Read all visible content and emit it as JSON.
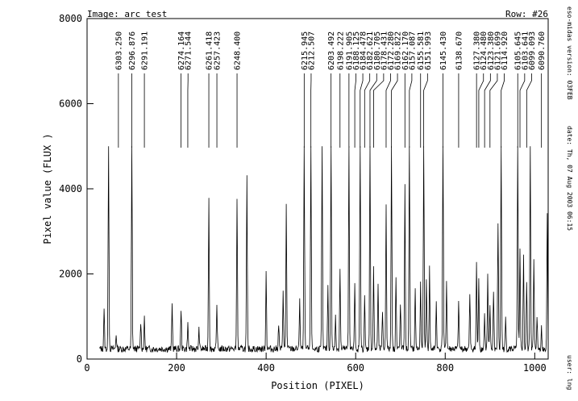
{
  "header": {
    "image_label": "Image: arc_test",
    "row_label": "Row: #26"
  },
  "side_text": {
    "version": "eso-midas version: 03FEB",
    "date": "date: Th, 07 Aug 2003 06:15",
    "user": "user: lng"
  },
  "chart_data": {
    "type": "line",
    "title": "",
    "xlabel": "Position (PIXEL)",
    "ylabel": "Pixel value (FLUX )",
    "xlim": [
      0,
      1030
    ],
    "ylim": [
      0,
      8000
    ],
    "x_ticks": [
      0,
      200,
      400,
      600,
      800,
      1000
    ],
    "y_ticks": [
      0,
      2000,
      4000,
      6000,
      8000
    ],
    "grid": false,
    "series": [
      {
        "baseline": 240,
        "x_range": [
          28,
          1030
        ],
        "peaks": [
          {
            "x": 38,
            "y": 900
          },
          {
            "x": 48,
            "y": 5000
          },
          {
            "x": 65,
            "y": 350
          },
          {
            "x": 100,
            "y": 5000
          },
          {
            "x": 120,
            "y": 650
          },
          {
            "x": 128,
            "y": 700
          },
          {
            "x": 190,
            "y": 1050
          },
          {
            "x": 210,
            "y": 950
          },
          {
            "x": 225,
            "y": 600
          },
          {
            "x": 250,
            "y": 450
          },
          {
            "x": 272,
            "y": 3600
          },
          {
            "x": 290,
            "y": 1000
          },
          {
            "x": 335,
            "y": 3600
          },
          {
            "x": 357,
            "y": 4000
          },
          {
            "x": 400,
            "y": 1800
          },
          {
            "x": 428,
            "y": 600
          },
          {
            "x": 438,
            "y": 1400
          },
          {
            "x": 445,
            "y": 3400
          },
          {
            "x": 475,
            "y": 1200
          },
          {
            "x": 485,
            "y": 5000
          },
          {
            "x": 500,
            "y": 5000
          },
          {
            "x": 525,
            "y": 5000
          },
          {
            "x": 538,
            "y": 1500
          },
          {
            "x": 545,
            "y": 5000
          },
          {
            "x": 555,
            "y": 800
          },
          {
            "x": 565,
            "y": 1900
          },
          {
            "x": 585,
            "y": 4900
          },
          {
            "x": 598,
            "y": 1500
          },
          {
            "x": 610,
            "y": 5000
          },
          {
            "x": 620,
            "y": 1200
          },
          {
            "x": 632,
            "y": 5000
          },
          {
            "x": 640,
            "y": 1900
          },
          {
            "x": 650,
            "y": 1500
          },
          {
            "x": 660,
            "y": 900
          },
          {
            "x": 668,
            "y": 3400
          },
          {
            "x": 680,
            "y": 5000
          },
          {
            "x": 690,
            "y": 1700
          },
          {
            "x": 700,
            "y": 1100
          },
          {
            "x": 710,
            "y": 3800
          },
          {
            "x": 720,
            "y": 5000
          },
          {
            "x": 733,
            "y": 1400
          },
          {
            "x": 745,
            "y": 1500
          },
          {
            "x": 752,
            "y": 5000
          },
          {
            "x": 758,
            "y": 1700
          },
          {
            "x": 765,
            "y": 1900
          },
          {
            "x": 780,
            "y": 1100
          },
          {
            "x": 795,
            "y": 5000
          },
          {
            "x": 803,
            "y": 1600
          },
          {
            "x": 830,
            "y": 1100
          },
          {
            "x": 855,
            "y": 1300
          },
          {
            "x": 870,
            "y": 2000
          },
          {
            "x": 875,
            "y": 1700
          },
          {
            "x": 888,
            "y": 800
          },
          {
            "x": 895,
            "y": 1700
          },
          {
            "x": 900,
            "y": 1000
          },
          {
            "x": 908,
            "y": 1400
          },
          {
            "x": 918,
            "y": 3000
          },
          {
            "x": 925,
            "y": 5000
          },
          {
            "x": 935,
            "y": 700
          },
          {
            "x": 962,
            "y": 5000
          },
          {
            "x": 967,
            "y": 2300
          },
          {
            "x": 975,
            "y": 2200
          },
          {
            "x": 982,
            "y": 1600
          },
          {
            "x": 990,
            "y": 5000
          },
          {
            "x": 998,
            "y": 2100
          },
          {
            "x": 1005,
            "y": 800
          },
          {
            "x": 1015,
            "y": 500
          },
          {
            "x": 1028,
            "y": 3200
          }
        ]
      }
    ],
    "annotations": [
      {
        "text": "6303.250",
        "x": 70
      },
      {
        "text": "6296.876",
        "x": 100
      },
      {
        "text": "6291.191",
        "x": 128
      },
      {
        "text": "6274.164",
        "x": 210
      },
      {
        "text": "6271.544",
        "x": 225
      },
      {
        "text": "6261.418",
        "x": 272
      },
      {
        "text": "6257.423",
        "x": 290
      },
      {
        "text": "6248.400",
        "x": 335
      },
      {
        "text": "6215.945",
        "x": 485
      },
      {
        "text": "6212.507",
        "x": 500
      },
      {
        "text": "6203.492",
        "x": 545
      },
      {
        "text": "6198.222",
        "x": 565
      },
      {
        "text": "6191.905",
        "x": 585
      },
      {
        "text": "6188.125",
        "x": 598
      },
      {
        "text": "6184.478",
        "x": 610
      },
      {
        "text": "6182.621",
        "x": 620
      },
      {
        "text": "6180.705",
        "x": 632
      },
      {
        "text": "6178.431",
        "x": 640
      },
      {
        "text": "6172.280",
        "x": 668
      },
      {
        "text": "6169.822",
        "x": 680
      },
      {
        "text": "6162.170",
        "x": 710
      },
      {
        "text": "6157.087",
        "x": 720
      },
      {
        "text": "6155.581",
        "x": 745
      },
      {
        "text": "6151.993",
        "x": 752
      },
      {
        "text": "6145.430",
        "x": 795
      },
      {
        "text": "6138.670",
        "x": 830
      },
      {
        "text": "6127.380",
        "x": 870
      },
      {
        "text": "6124.480",
        "x": 875
      },
      {
        "text": "6123.380",
        "x": 888
      },
      {
        "text": "6121.699",
        "x": 900
      },
      {
        "text": "6114.920",
        "x": 925
      },
      {
        "text": "6105.645",
        "x": 962
      },
      {
        "text": "6103.641",
        "x": 967
      },
      {
        "text": "6099.093",
        "x": 982
      },
      {
        "text": "6090.760",
        "x": 1015
      }
    ]
  }
}
